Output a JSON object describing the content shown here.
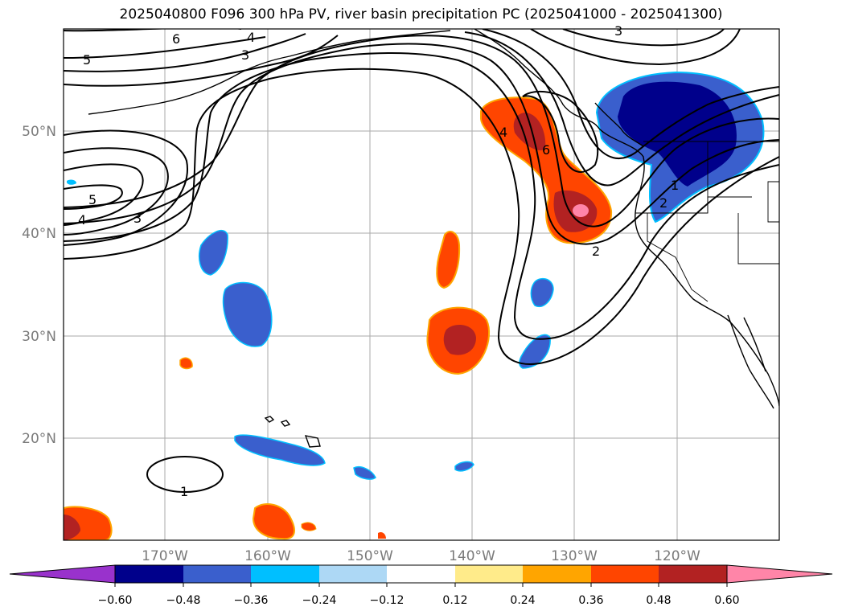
{
  "title": "2025040800 F096 300 hPa PV, river basin precipitation PC (2025041000 - 2025041300)",
  "map": {
    "lon_labels": [
      "170°W",
      "160°W",
      "150°W",
      "140°W",
      "130°W",
      "120°W"
    ],
    "lat_labels": [
      "50°N",
      "40°N",
      "30°N",
      "20°N"
    ],
    "pv_contour_labels": [
      "6",
      "4",
      "5",
      "3",
      "5",
      "4",
      "3",
      "3",
      "4",
      "6",
      "2",
      "2",
      "1",
      "1"
    ],
    "pv_contour_color": "#000000",
    "coastline_color": "#000000",
    "gridline_color": "#aaaaaa"
  },
  "colorbar": {
    "tick_labels": [
      "−0.60",
      "−0.48",
      "−0.36",
      "−0.24",
      "−0.12",
      "0.12",
      "0.24",
      "0.36",
      "0.48",
      "0.60"
    ],
    "colors": [
      "#9932cc",
      "#00008b",
      "#3a5fcd",
      "#00bfff",
      "#add8f5",
      "#ffffff",
      "#ffeb8a",
      "#ffa500",
      "#ff4500",
      "#b22222",
      "#ff85a8"
    ]
  }
}
